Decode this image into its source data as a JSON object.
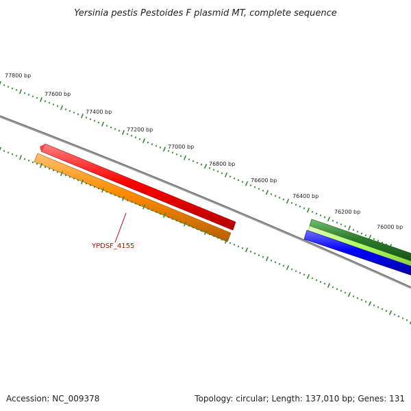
{
  "title": "Yersinia pestis Pestoides F plasmid MT, complete sequence",
  "footer": {
    "accession": "Accession: NC_009378",
    "summary": "Topology: circular; Length: 137,010 bp; Genes: 131"
  },
  "colors": {
    "backbone": "#808080",
    "ticks": "#2e8b2e",
    "gene_label": "#cc0000",
    "features": [
      "#ff0000",
      "#ff8c00",
      "#2e7d2e",
      "#b2ff66",
      "#0000ff"
    ]
  },
  "tick_labels": [
    "77800 bp",
    "77600 bp",
    "77400 bp",
    "77200 bp",
    "77000 bp",
    "76800 bp",
    "76600 bp",
    "76400 bp",
    "76200 bp",
    "76000 bp"
  ],
  "gene_labels": [
    "YPDSF_4155"
  ]
}
